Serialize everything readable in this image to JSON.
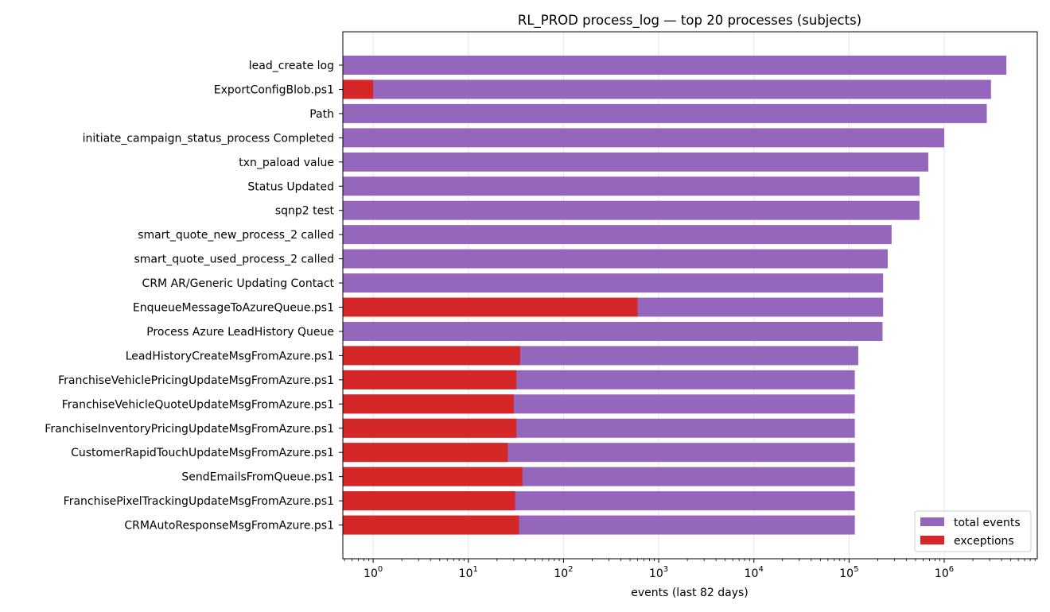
{
  "chart_data": {
    "type": "bar",
    "orientation": "horizontal",
    "title": "RL_PROD process_log — top 20 processes (subjects)",
    "xlabel": "events (last 82 days)",
    "ylabel": "",
    "xscale": "log",
    "xlim": [
      0.48,
      9500000
    ],
    "xticks": [
      {
        "value": 1,
        "base": "10",
        "exp": "0"
      },
      {
        "value": 10,
        "base": "10",
        "exp": "1"
      },
      {
        "value": 100,
        "base": "10",
        "exp": "2"
      },
      {
        "value": 1000,
        "base": "10",
        "exp": "3"
      },
      {
        "value": 10000,
        "base": "10",
        "exp": "4"
      },
      {
        "value": 100000,
        "base": "10",
        "exp": "5"
      },
      {
        "value": 1000000,
        "base": "10",
        "exp": "6"
      }
    ],
    "grid": "x-major",
    "legend_position": "lower-right",
    "categories": [
      "lead_create log",
      "ExportConfigBlob.ps1",
      "Path",
      "initiate_campaign_status_process Completed",
      "txn_paload value",
      "Status Updated",
      "sqnp2 test",
      "smart_quote_new_process_2 called",
      "smart_quote_used_process_2 called",
      "CRM AR/Generic Updating Contact",
      "EnqueueMessageToAzureQueue.ps1",
      "Process Azure LeadHistory Queue",
      "LeadHistoryCreateMsgFromAzure.ps1",
      "FranchiseVehiclePricingUpdateMsgFromAzure.ps1",
      "FranchiseVehicleQuoteUpdateMsgFromAzure.ps1",
      "FranchiseInventoryPricingUpdateMsgFromAzure.ps1",
      "CustomerRapidTouchUpdateMsgFromAzure.ps1",
      "SendEmailsFromQueue.ps1",
      "FranchisePixelTrackingUpdateMsgFromAzure.ps1",
      "CRMAutoResponseMsgFromAzure.ps1"
    ],
    "series": [
      {
        "name": "total events",
        "color": "#9467bd",
        "values": [
          4500000,
          3100000,
          2800000,
          1000000,
          680000,
          550000,
          550000,
          280000,
          255000,
          228000,
          228000,
          225000,
          125000,
          115000,
          115000,
          115000,
          115000,
          115000,
          115000,
          115000
        ]
      },
      {
        "name": "exceptions",
        "color": "#d62728",
        "values": [
          0,
          1,
          0,
          0,
          0,
          0,
          0,
          0,
          0,
          0,
          600,
          0,
          35,
          32,
          30,
          32,
          26,
          37,
          31,
          34
        ]
      }
    ]
  }
}
